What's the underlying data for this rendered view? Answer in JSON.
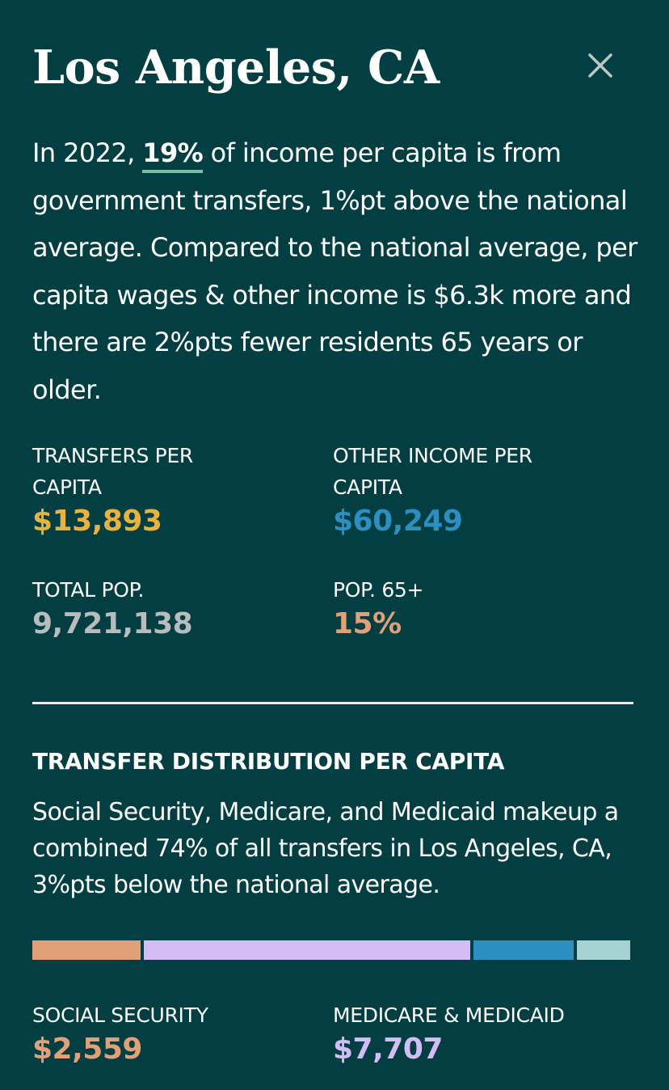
{
  "header": {
    "title": "Los Angeles, CA",
    "close_icon": "close-icon"
  },
  "summary": {
    "prefix": "In 2022, ",
    "highlight": "19%",
    "rest": " of income per capita is from government transfers, 1%pt above the national average. Compared to the national average, per capita wages & other income is $6.3k more and there are 2%pts fewer residents 65 years or older."
  },
  "stats": {
    "transfers": {
      "label": "TRANSFERS PER CAPITA",
      "value": "$13,893",
      "color": "#e7b33e"
    },
    "other_income": {
      "label": "OTHER INCOME PER CAPITA",
      "value": "$60,249",
      "color": "#2b8fc1"
    },
    "total_pop": {
      "label": "TOTAL POP.",
      "value": "9,721,138",
      "color": "#b9bcbc"
    },
    "pop65": {
      "label": "POP. 65+",
      "value": "15%",
      "color": "#e2a079"
    }
  },
  "distribution": {
    "heading": "TRANSFER DISTRIBUTION PER CAPITA",
    "text": "Social Security, Medicare, and Medicaid makeup a combined 74% of all transfers in Los Angeles, CA, 3%pts below the national average.",
    "segments": [
      {
        "name": "social-security",
        "share": 0.184,
        "color": "#e2a079"
      },
      {
        "name": "medicare-medicaid",
        "share": 0.555,
        "color": "#d4bdf7"
      },
      {
        "name": "segment-3",
        "share": 0.171,
        "color": "#2b8fc1"
      },
      {
        "name": "segment-4",
        "share": 0.09,
        "color": "#a5d3d4"
      }
    ],
    "items": {
      "social_security": {
        "label": "SOCIAL SECURITY",
        "value": "$2,559",
        "color": "#e2a079"
      },
      "medicare_medicaid": {
        "label": "MEDICARE & MEDICAID",
        "value": "$7,707",
        "color": "#d4bdf7"
      }
    }
  }
}
